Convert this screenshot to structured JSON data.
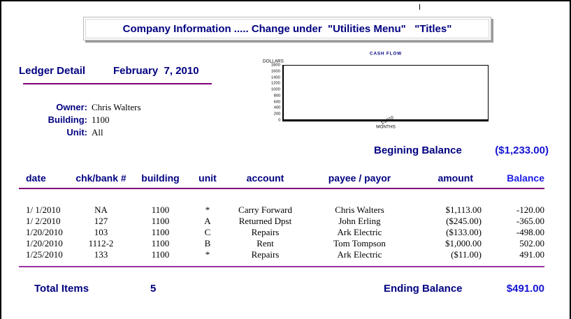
{
  "banner": {
    "text": "Company Information ..... Change under  \"Utilities Menu\"   \"Titles\""
  },
  "report": {
    "title": "Ledger Detail",
    "date": "February  7, 2010",
    "fields": [
      {
        "label": "Owner:",
        "value": "Chris Walters"
      },
      {
        "label": "Building:",
        "value": "1100"
      },
      {
        "label": "Unit:",
        "value": "All"
      }
    ]
  },
  "chart_data": {
    "type": "line",
    "title": "CASH FLOW",
    "ylabel": "DOLLARS",
    "xlabel": "MONTHS",
    "yticks": [
      "1800",
      "1600",
      "1400",
      "1200",
      "1000",
      "800",
      "600",
      "400",
      "200",
      "0"
    ],
    "xticks": [
      "1/2010"
    ],
    "ylim": [
      0,
      1800
    ],
    "series": [],
    "note": "empty plot area - no data series drawn"
  },
  "summary": {
    "beginning_label": "Begining Balance",
    "beginning_value": "($1,233.00)",
    "total_items_label": "Total Items",
    "total_items_value": "5",
    "ending_label": "Ending Balance",
    "ending_value": "$491.00"
  },
  "table": {
    "headers": [
      "date",
      "chk/bank #",
      "building",
      "unit",
      "account",
      "payee / payor",
      "amount",
      "Balance"
    ],
    "rows": [
      [
        "1/ 1/2010",
        "NA",
        "1100",
        "*",
        "Carry Forward",
        "Chris Walters",
        "$1,113.00",
        "-120.00"
      ],
      [
        "1/ 2/2010",
        "127",
        "1100",
        "A",
        "Returned Dpst",
        "John Erling",
        "($245.00)",
        "-365.00"
      ],
      [
        "1/20/2010",
        "103",
        "1100",
        "C",
        "Repairs",
        "Ark Electric",
        "($133.00)",
        "-498.00"
      ],
      [
        "1/20/2010",
        "1112-2",
        "1100",
        "B",
        "Rent",
        "Tom Tompson",
        "$1,000.00",
        "502.00"
      ],
      [
        "1/25/2010",
        "133",
        "1100",
        "*",
        "Repairs",
        "Ark Electric",
        "($11.00)",
        "491.00"
      ]
    ]
  },
  "colors": {
    "navy": "#000080",
    "bright_blue": "#1414d2",
    "rule_purple": "#80007d",
    "rule_magenta": "#9933a0"
  }
}
